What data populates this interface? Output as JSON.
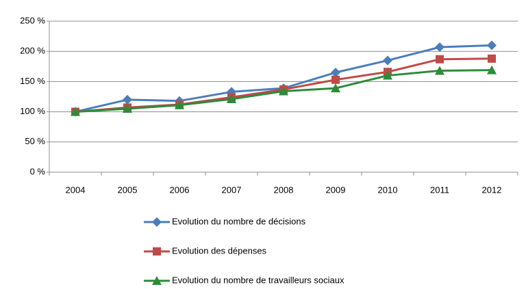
{
  "chart_data": {
    "type": "line",
    "categories": [
      "2004",
      "2005",
      "2006",
      "2007",
      "2008",
      "2009",
      "2010",
      "2011",
      "2012"
    ],
    "series": [
      {
        "name": "Evolution du nombre de décisions",
        "color": "#4a7ebb",
        "marker": "diamond",
        "values": [
          100,
          120,
          118,
          133,
          139,
          165,
          185,
          207,
          210
        ]
      },
      {
        "name": "Evolution des dépenses",
        "color": "#be4b48",
        "marker": "square",
        "values": [
          100,
          107,
          112,
          124,
          137,
          153,
          166,
          187,
          188
        ]
      },
      {
        "name": "Evolution du nombre de travailleurs sociaux",
        "color": "#2e8b3a",
        "marker": "triangle",
        "values": [
          100,
          105,
          111,
          121,
          134,
          139,
          160,
          168,
          169
        ]
      }
    ],
    "ylim": [
      0,
      250
    ],
    "yticks": [
      {
        "value": 0,
        "label": "0 %"
      },
      {
        "value": 50,
        "label": "50 %"
      },
      {
        "value": 100,
        "label": "100 %"
      },
      {
        "value": 150,
        "label": "150 %"
      },
      {
        "value": 200,
        "label": "200 %"
      },
      {
        "value": 250,
        "label": "250 %"
      }
    ],
    "grid": true,
    "legend": "bottom"
  }
}
